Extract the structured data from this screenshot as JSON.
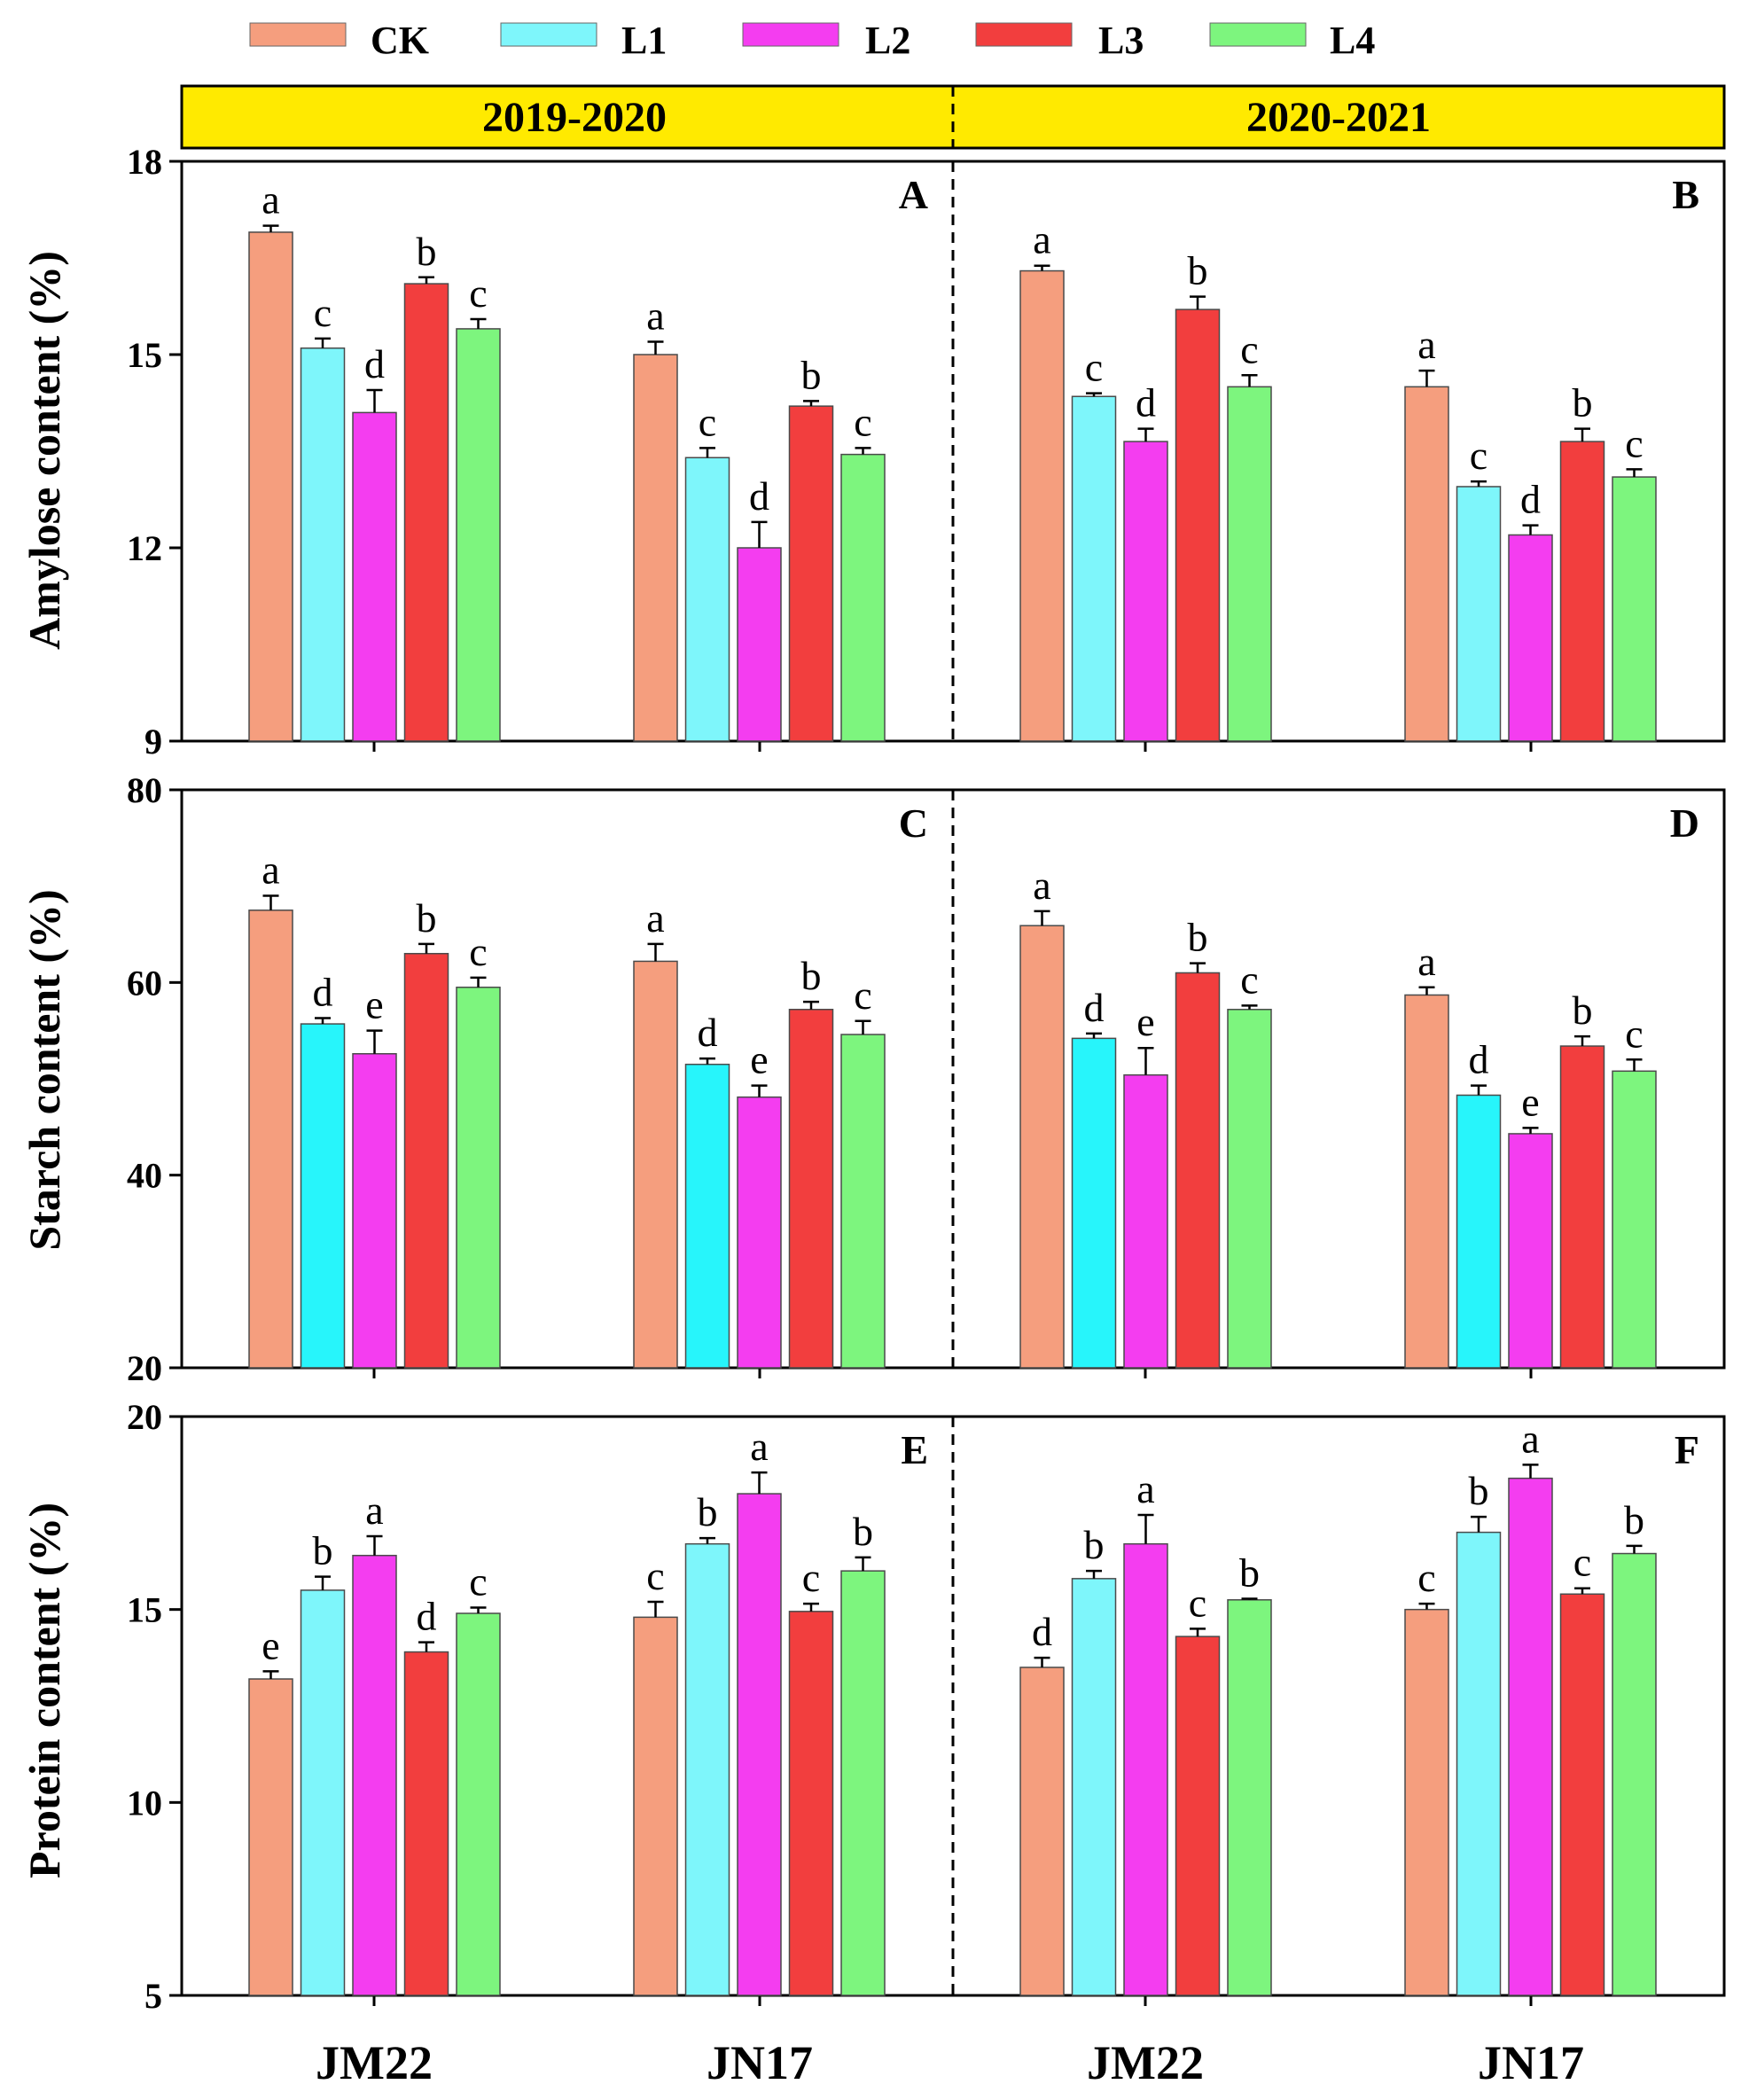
{
  "colors": {
    "CK": "#f59e7e",
    "L1_light": "#7ef6fb",
    "L1_dark": "#27f5fb",
    "L2": "#f43df0",
    "L3": "#f23e3e",
    "L4": "#7df57e",
    "banner": "#ffea00"
  },
  "legend": [
    "CK",
    "L1",
    "L2",
    "L3",
    "L4"
  ],
  "seasons": [
    "2019-2020",
    "2020-2021"
  ],
  "chart_data": [
    {
      "type": "bar",
      "panel": "A",
      "season": "2019-2020",
      "ylabel": "Amylose content (%)",
      "ylim": [
        9,
        18
      ],
      "yticks": [
        9,
        12,
        15,
        18
      ],
      "categories": [
        "JM22",
        "JN17"
      ],
      "series": [
        {
          "name": "CK",
          "values": [
            16.9,
            15.0
          ],
          "errors": [
            0.1,
            0.2
          ],
          "labels": [
            "a",
            "a"
          ]
        },
        {
          "name": "L1",
          "values": [
            15.1,
            13.4
          ],
          "errors": [
            0.15,
            0.15
          ],
          "labels": [
            "c",
            "c"
          ]
        },
        {
          "name": "L2",
          "values": [
            14.1,
            12.0
          ],
          "errors": [
            0.35,
            0.4
          ],
          "labels": [
            "d",
            "d"
          ]
        },
        {
          "name": "L3",
          "values": [
            16.1,
            14.2
          ],
          "errors": [
            0.1,
            0.08
          ],
          "labels": [
            "b",
            "b"
          ]
        },
        {
          "name": "L4",
          "values": [
            15.4,
            13.45
          ],
          "errors": [
            0.15,
            0.1
          ],
          "labels": [
            "c",
            "c"
          ]
        }
      ]
    },
    {
      "type": "bar",
      "panel": "B",
      "season": "2020-2021",
      "ylabel": "Amylose content (%)",
      "ylim": [
        9,
        18
      ],
      "yticks": [
        9,
        12,
        15,
        18
      ],
      "categories": [
        "JM22",
        "JN17"
      ],
      "series": [
        {
          "name": "CK",
          "values": [
            16.3,
            14.5
          ],
          "errors": [
            0.08,
            0.25
          ],
          "labels": [
            "a",
            "a"
          ]
        },
        {
          "name": "L1",
          "values": [
            14.35,
            12.95
          ],
          "errors": [
            0.05,
            0.08
          ],
          "labels": [
            "c",
            "c"
          ]
        },
        {
          "name": "L2",
          "values": [
            13.65,
            12.2
          ],
          "errors": [
            0.2,
            0.15
          ],
          "labels": [
            "d",
            "d"
          ]
        },
        {
          "name": "L3",
          "values": [
            15.7,
            13.65
          ],
          "errors": [
            0.2,
            0.2
          ],
          "labels": [
            "b",
            "b"
          ]
        },
        {
          "name": "L4",
          "values": [
            14.5,
            13.1
          ],
          "errors": [
            0.18,
            0.12
          ],
          "labels": [
            "c",
            "c"
          ]
        }
      ]
    },
    {
      "type": "bar",
      "panel": "C",
      "season": "2019-2020",
      "ylabel": "Starch content (%)",
      "ylim": [
        20,
        80
      ],
      "yticks": [
        20,
        40,
        60,
        80
      ],
      "categories": [
        "JM22",
        "JN17"
      ],
      "series": [
        {
          "name": "CK",
          "values": [
            67.5,
            62.2
          ],
          "errors": [
            1.5,
            1.8
          ],
          "labels": [
            "a",
            "a"
          ]
        },
        {
          "name": "L1",
          "values": [
            55.7,
            51.5
          ],
          "errors": [
            0.6,
            0.6
          ],
          "labels": [
            "d",
            "d"
          ]
        },
        {
          "name": "L2",
          "values": [
            52.6,
            48.1
          ],
          "errors": [
            2.4,
            1.2
          ],
          "labels": [
            "e",
            "e"
          ]
        },
        {
          "name": "L3",
          "values": [
            63.0,
            57.2
          ],
          "errors": [
            1.0,
            0.8
          ],
          "labels": [
            "b",
            "b"
          ]
        },
        {
          "name": "L4",
          "values": [
            59.5,
            54.6
          ],
          "errors": [
            1.0,
            1.4
          ],
          "labels": [
            "c",
            "c"
          ]
        }
      ]
    },
    {
      "type": "bar",
      "panel": "D",
      "season": "2020-2021",
      "ylabel": "Starch content (%)",
      "ylim": [
        20,
        80
      ],
      "yticks": [
        20,
        40,
        60,
        80
      ],
      "categories": [
        "JM22",
        "JN17"
      ],
      "series": [
        {
          "name": "CK",
          "values": [
            65.9,
            58.7
          ],
          "errors": [
            1.5,
            0.8
          ],
          "labels": [
            "a",
            "a"
          ]
        },
        {
          "name": "L1",
          "values": [
            54.2,
            48.3
          ],
          "errors": [
            0.5,
            1.0
          ],
          "labels": [
            "d",
            "d"
          ]
        },
        {
          "name": "L2",
          "values": [
            50.4,
            44.3
          ],
          "errors": [
            2.8,
            0.6
          ],
          "labels": [
            "e",
            "e"
          ]
        },
        {
          "name": "L3",
          "values": [
            61.0,
            53.4
          ],
          "errors": [
            1.0,
            1.0
          ],
          "labels": [
            "b",
            "b"
          ]
        },
        {
          "name": "L4",
          "values": [
            57.2,
            50.8
          ],
          "errors": [
            0.4,
            1.2
          ],
          "labels": [
            "c",
            "c"
          ]
        }
      ]
    },
    {
      "type": "bar",
      "panel": "E",
      "season": "2019-2020",
      "ylabel": "Protein content (%)",
      "ylim": [
        5,
        20
      ],
      "yticks": [
        5,
        10,
        15,
        20
      ],
      "categories": [
        "JM22",
        "JN17"
      ],
      "series": [
        {
          "name": "CK",
          "values": [
            13.2,
            14.8
          ],
          "errors": [
            0.2,
            0.4
          ],
          "labels": [
            "e",
            "c"
          ]
        },
        {
          "name": "L1",
          "values": [
            15.5,
            16.7
          ],
          "errors": [
            0.35,
            0.15
          ],
          "labels": [
            "b",
            "b"
          ]
        },
        {
          "name": "L2",
          "values": [
            16.4,
            18.0
          ],
          "errors": [
            0.5,
            0.55
          ],
          "labels": [
            "a",
            "a"
          ]
        },
        {
          "name": "L3",
          "values": [
            13.9,
            14.95
          ],
          "errors": [
            0.25,
            0.2
          ],
          "labels": [
            "d",
            "c"
          ]
        },
        {
          "name": "L4",
          "values": [
            14.9,
            16.0
          ],
          "errors": [
            0.15,
            0.35
          ],
          "labels": [
            "c",
            "b"
          ]
        }
      ]
    },
    {
      "type": "bar",
      "panel": "F",
      "season": "2020-2021",
      "ylabel": "Protein content (%)",
      "ylim": [
        5,
        20
      ],
      "yticks": [
        5,
        10,
        15,
        20
      ],
      "categories": [
        "JM22",
        "JN17"
      ],
      "series": [
        {
          "name": "CK",
          "values": [
            13.5,
            15.0
          ],
          "errors": [
            0.25,
            0.15
          ],
          "labels": [
            "d",
            "c"
          ]
        },
        {
          "name": "L1",
          "values": [
            15.8,
            17.0
          ],
          "errors": [
            0.2,
            0.4
          ],
          "labels": [
            "b",
            "b"
          ]
        },
        {
          "name": "L2",
          "values": [
            16.7,
            18.4
          ],
          "errors": [
            0.75,
            0.35
          ],
          "labels": [
            "a",
            "a"
          ]
        },
        {
          "name": "L3",
          "values": [
            14.3,
            15.4
          ],
          "errors": [
            0.2,
            0.15
          ],
          "labels": [
            "c",
            "c"
          ]
        },
        {
          "name": "L4",
          "values": [
            15.25,
            16.45
          ],
          "errors": [
            0.03,
            0.2
          ],
          "labels": [
            "b",
            "b"
          ]
        }
      ]
    }
  ]
}
